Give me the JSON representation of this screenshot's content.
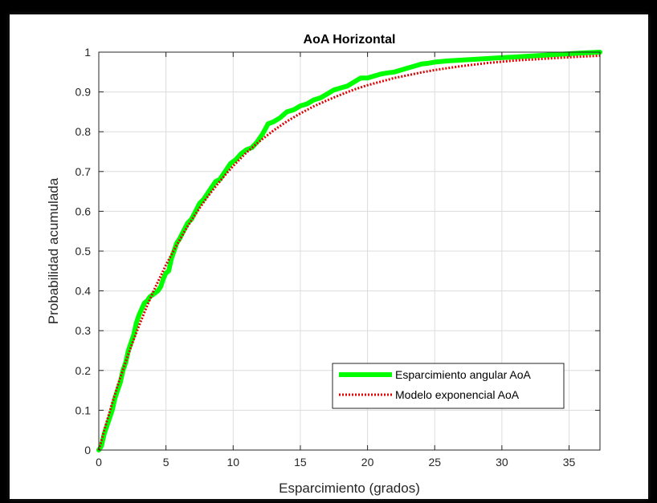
{
  "chart_data": {
    "type": "line",
    "title": "AoA Horizontal",
    "xlabel": "Esparcimiento (grados)",
    "ylabel": "Probabilidad acumulada",
    "xlim": [
      0,
      37.3
    ],
    "ylim": [
      0,
      1
    ],
    "xticks": [
      0,
      5,
      10,
      15,
      20,
      25,
      30,
      35
    ],
    "yticks": [
      0,
      0.1,
      0.2,
      0.3,
      0.4,
      0.5,
      0.6,
      0.7,
      0.8,
      0.9,
      1
    ],
    "xtick_labels": [
      "0",
      "5",
      "10",
      "15",
      "20",
      "25",
      "30",
      "35"
    ],
    "ytick_labels": [
      "0",
      "0.1",
      "0.2",
      "0.3",
      "0.4",
      "0.5",
      "0.6",
      "0.7",
      "0.8",
      "0.9",
      "1"
    ],
    "grid": true,
    "legend_position": "lower-right",
    "series": [
      {
        "name": "Esparcimiento angular AoA",
        "color": "#00ff00",
        "style": "solid",
        "x": [
          0,
          0.2,
          0.4,
          0.6,
          0.8,
          1.0,
          1.2,
          1.4,
          1.6,
          1.8,
          2.0,
          2.2,
          2.4,
          2.6,
          2.8,
          3.0,
          3.2,
          3.4,
          3.6,
          3.8,
          4.0,
          4.2,
          4.4,
          4.6,
          4.8,
          5.0,
          5.2,
          5.4,
          5.6,
          5.8,
          6.0,
          6.3,
          6.6,
          6.9,
          7.2,
          7.5,
          7.8,
          8.1,
          8.4,
          8.7,
          9.0,
          9.4,
          9.8,
          10.2,
          10.6,
          11.0,
          11.4,
          11.8,
          12.2,
          12.6,
          13.0,
          13.5,
          14.0,
          14.5,
          15.0,
          15.5,
          16.0,
          16.5,
          17.0,
          17.5,
          18.0,
          18.5,
          19.0,
          19.5,
          20.0,
          20.5,
          21.0,
          21.5,
          22.0,
          22.5,
          23.0,
          23.5,
          24.0,
          24.5,
          25.0,
          26.0,
          27.0,
          28.0,
          29.0,
          30.0,
          31.0,
          32.0,
          33.0,
          34.0,
          35.0,
          36.0,
          37.3
        ],
        "values": [
          0,
          0.01,
          0.04,
          0.06,
          0.08,
          0.1,
          0.13,
          0.15,
          0.17,
          0.2,
          0.22,
          0.25,
          0.27,
          0.29,
          0.32,
          0.34,
          0.355,
          0.37,
          0.375,
          0.385,
          0.39,
          0.395,
          0.4,
          0.41,
          0.43,
          0.445,
          0.45,
          0.48,
          0.5,
          0.52,
          0.53,
          0.55,
          0.57,
          0.58,
          0.6,
          0.62,
          0.63,
          0.645,
          0.66,
          0.675,
          0.68,
          0.7,
          0.72,
          0.73,
          0.745,
          0.755,
          0.76,
          0.775,
          0.795,
          0.82,
          0.825,
          0.835,
          0.85,
          0.855,
          0.865,
          0.87,
          0.88,
          0.885,
          0.895,
          0.905,
          0.91,
          0.915,
          0.925,
          0.935,
          0.935,
          0.94,
          0.945,
          0.948,
          0.95,
          0.955,
          0.96,
          0.965,
          0.97,
          0.972,
          0.975,
          0.978,
          0.98,
          0.982,
          0.984,
          0.986,
          0.988,
          0.99,
          0.992,
          0.994,
          0.996,
          0.998,
          1.0
        ]
      },
      {
        "name": "Modelo exponencial AoA",
        "color": "#e00000",
        "style": "dotted",
        "x": [
          0,
          0.5,
          1.0,
          1.5,
          2.0,
          2.5,
          3.0,
          3.5,
          4.0,
          4.5,
          5.0,
          5.5,
          6.0,
          6.5,
          7.0,
          7.5,
          8.0,
          8.5,
          9.0,
          9.5,
          10.0,
          11.0,
          12.0,
          13.0,
          14.0,
          15.0,
          16.0,
          17.0,
          18.0,
          19.0,
          20.0,
          21.0,
          22.0,
          23.0,
          24.0,
          25.0,
          26.0,
          27.0,
          28.0,
          29.0,
          30.0,
          31.0,
          32.0,
          33.0,
          34.0,
          35.0,
          36.0,
          37.3
        ],
        "values": [
          0,
          0.061,
          0.118,
          0.172,
          0.222,
          0.269,
          0.313,
          0.355,
          0.394,
          0.43,
          0.465,
          0.497,
          0.527,
          0.556,
          0.583,
          0.608,
          0.632,
          0.654,
          0.675,
          0.695,
          0.714,
          0.748,
          0.777,
          0.803,
          0.826,
          0.846,
          0.864,
          0.879,
          0.893,
          0.906,
          0.917,
          0.926,
          0.935,
          0.942,
          0.949,
          0.955,
          0.96,
          0.965,
          0.969,
          0.973,
          0.976,
          0.979,
          0.981,
          0.983,
          0.985,
          0.987,
          0.989,
          0.991
        ]
      }
    ]
  }
}
